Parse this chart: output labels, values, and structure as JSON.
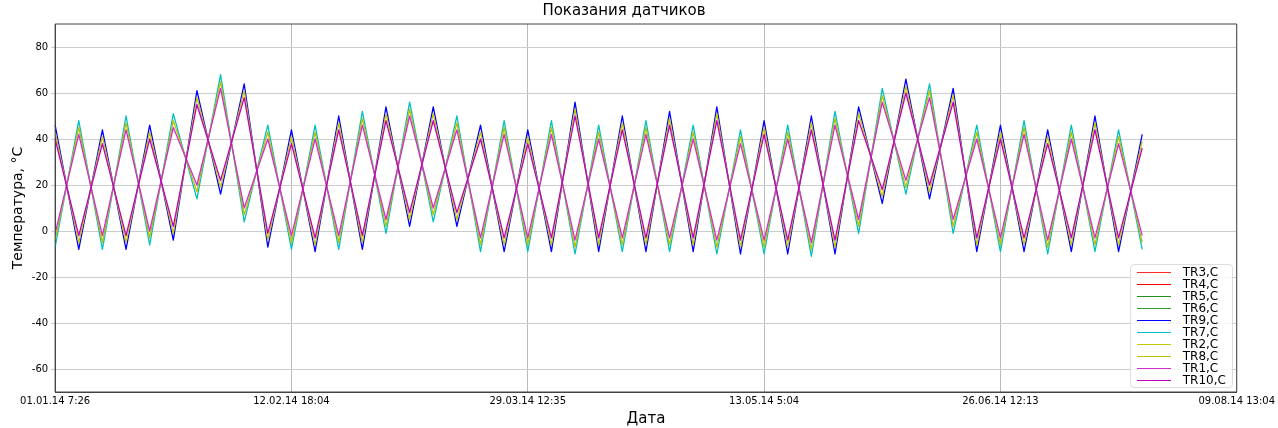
{
  "chart_data": {
    "type": "line",
    "title": "Показания датчиков",
    "xlabel": "Дата",
    "ylabel": "Температура, °C",
    "categories": [
      "01.01.14 7:26",
      null,
      null,
      null,
      null,
      null,
      null,
      null,
      null,
      null,
      "12.02.14 18:04",
      null,
      null,
      null,
      null,
      null,
      null,
      null,
      null,
      null,
      "29.03.14 12:35",
      null,
      null,
      null,
      null,
      null,
      null,
      null,
      null,
      null,
      "13.05.14 5:04",
      null,
      null,
      null,
      null,
      null,
      null,
      null,
      null,
      null,
      "26.06.14 12:13",
      null,
      null,
      null,
      null,
      null,
      null,
      null,
      null,
      null,
      "09.08.14 13:04"
    ],
    "ylim": [
      -70,
      90
    ],
    "yticks": [
      -60,
      -40,
      -20,
      0,
      20,
      40,
      60,
      80
    ],
    "grid": true,
    "legend": "bottom right",
    "series": [
      {
        "name": "TR3,C",
        "color": "#ff2a2a",
        "values": [
          null,
          null,
          null,
          null,
          null,
          null,
          null,
          null,
          null,
          null,
          null,
          null,
          null,
          null,
          null,
          null,
          null,
          null,
          null,
          null,
          null,
          null,
          null,
          null,
          null,
          null,
          null,
          null,
          null,
          null,
          null,
          null,
          null,
          null,
          null,
          null,
          null,
          null,
          null,
          null,
          null,
          null,
          null,
          null,
          null,
          null,
          null,
          null,
          null,
          null,
          null
        ]
      },
      {
        "name": "TR4,C",
        "color": "#ff0000",
        "values": [
          null,
          null,
          null,
          null,
          null,
          null,
          null,
          null,
          null,
          null,
          null,
          null,
          null,
          null,
          null,
          null,
          null,
          null,
          null,
          null,
          null,
          null,
          null,
          null,
          null,
          null,
          null,
          null,
          null,
          null,
          null,
          null,
          null,
          null,
          null,
          null,
          null,
          null,
          null,
          null,
          null,
          null,
          null,
          null,
          null,
          null,
          null,
          null,
          null,
          null,
          null
        ]
      },
      {
        "name": "TR5,C",
        "color": "#1f8f1f",
        "values": [
          null,
          null,
          null,
          null,
          null,
          null,
          null,
          null,
          null,
          null,
          null,
          null,
          null,
          null,
          null,
          null,
          null,
          null,
          null,
          null,
          null,
          null,
          null,
          null,
          null,
          null,
          null,
          null,
          null,
          null,
          null,
          null,
          null,
          null,
          null,
          null,
          null,
          null,
          null,
          null,
          null,
          null,
          null,
          null,
          null,
          null,
          null,
          null,
          null,
          null,
          null
        ]
      },
      {
        "name": "TR6,C",
        "color": "#2ca02c",
        "values": [
          null,
          null,
          null,
          null,
          null,
          null,
          null,
          null,
          null,
          null,
          null,
          null,
          null,
          null,
          null,
          null,
          null,
          null,
          null,
          null,
          null,
          null,
          null,
          null,
          null,
          null,
          null,
          null,
          null,
          null,
          null,
          null,
          null,
          null,
          null,
          null,
          null,
          null,
          null,
          null,
          null,
          null,
          null,
          null,
          null,
          null,
          null,
          null,
          null,
          null,
          null
        ]
      },
      {
        "name": "TR9,C",
        "color": "#0000ff",
        "values": [
          46,
          -8,
          44,
          -8,
          46,
          -4,
          61,
          16,
          64,
          -7,
          44,
          -9,
          50,
          -8,
          54,
          2,
          54,
          2,
          46,
          -9,
          44,
          -9,
          56,
          -9,
          50,
          -9,
          52,
          -9,
          54,
          -10,
          48,
          -10,
          50,
          -10,
          54,
          12,
          66,
          14,
          62,
          -9,
          46,
          -9,
          44,
          -9,
          50,
          -9,
          42,
          null,
          null,
          null,
          null
        ]
      },
      {
        "name": "TR7,C",
        "color": "#00c0c0",
        "values": [
          -7,
          48,
          -8,
          50,
          -6,
          51,
          14,
          68,
          4,
          46,
          -8,
          46,
          -8,
          52,
          -1,
          56,
          4,
          50,
          -9,
          48,
          -9,
          48,
          -10,
          46,
          -9,
          48,
          -9,
          46,
          -10,
          44,
          -10,
          46,
          -11,
          52,
          -1,
          62,
          16,
          64,
          -1,
          46,
          -9,
          48,
          -10,
          46,
          -9,
          44,
          -8,
          null,
          null,
          null,
          null
        ]
      },
      {
        "name": "TR2,C",
        "color": "#c8c800",
        "values": [
          43,
          -5,
          41,
          -5,
          43,
          -1,
          58,
          19,
          61,
          -4,
          41,
          -6,
          47,
          -5,
          51,
          5,
          51,
          5,
          43,
          -6,
          41,
          -6,
          53,
          -6,
          47,
          -6,
          49,
          -6,
          51,
          -7,
          45,
          -7,
          47,
          -7,
          51,
          15,
          63,
          17,
          59,
          -6,
          43,
          -6,
          41,
          -6,
          47,
          -6,
          39,
          null,
          null,
          null,
          null
        ]
      },
      {
        "name": "TR8,C",
        "color": "#bfbf00",
        "values": [
          -4,
          45,
          -5,
          47,
          -3,
          48,
          17,
          65,
          7,
          43,
          -5,
          43,
          -5,
          49,
          2,
          53,
          7,
          47,
          -6,
          45,
          -6,
          45,
          -7,
          43,
          -6,
          45,
          -6,
          43,
          -7,
          41,
          -7,
          43,
          -8,
          49,
          2,
          59,
          19,
          61,
          2,
          43,
          -6,
          45,
          -7,
          43,
          -6,
          41,
          -5,
          null,
          null,
          null,
          null
        ]
      },
      {
        "name": "TR1,C",
        "color": "#d030d0",
        "values": [
          -1,
          42,
          -2,
          44,
          0,
          45,
          20,
          62,
          10,
          40,
          -2,
          40,
          -2,
          46,
          5,
          50,
          10,
          44,
          -3,
          42,
          -3,
          42,
          -4,
          40,
          -3,
          42,
          -3,
          40,
          -4,
          38,
          -4,
          40,
          -5,
          46,
          5,
          56,
          22,
          58,
          5,
          40,
          -3,
          42,
          -4,
          40,
          -3,
          38,
          -2,
          null,
          null,
          null,
          null
        ]
      },
      {
        "name": "TR10,C",
        "color": "#bf00bf",
        "values": [
          40,
          -2,
          38,
          -2,
          40,
          2,
          55,
          22,
          58,
          -1,
          38,
          -3,
          44,
          -2,
          48,
          8,
          48,
          8,
          40,
          -3,
          38,
          -3,
          50,
          -3,
          44,
          -3,
          46,
          -3,
          48,
          -4,
          42,
          -4,
          44,
          -4,
          48,
          18,
          60,
          20,
          56,
          -3,
          40,
          -3,
          38,
          -3,
          44,
          -3,
          36,
          null,
          null,
          null,
          null
        ]
      }
    ]
  }
}
